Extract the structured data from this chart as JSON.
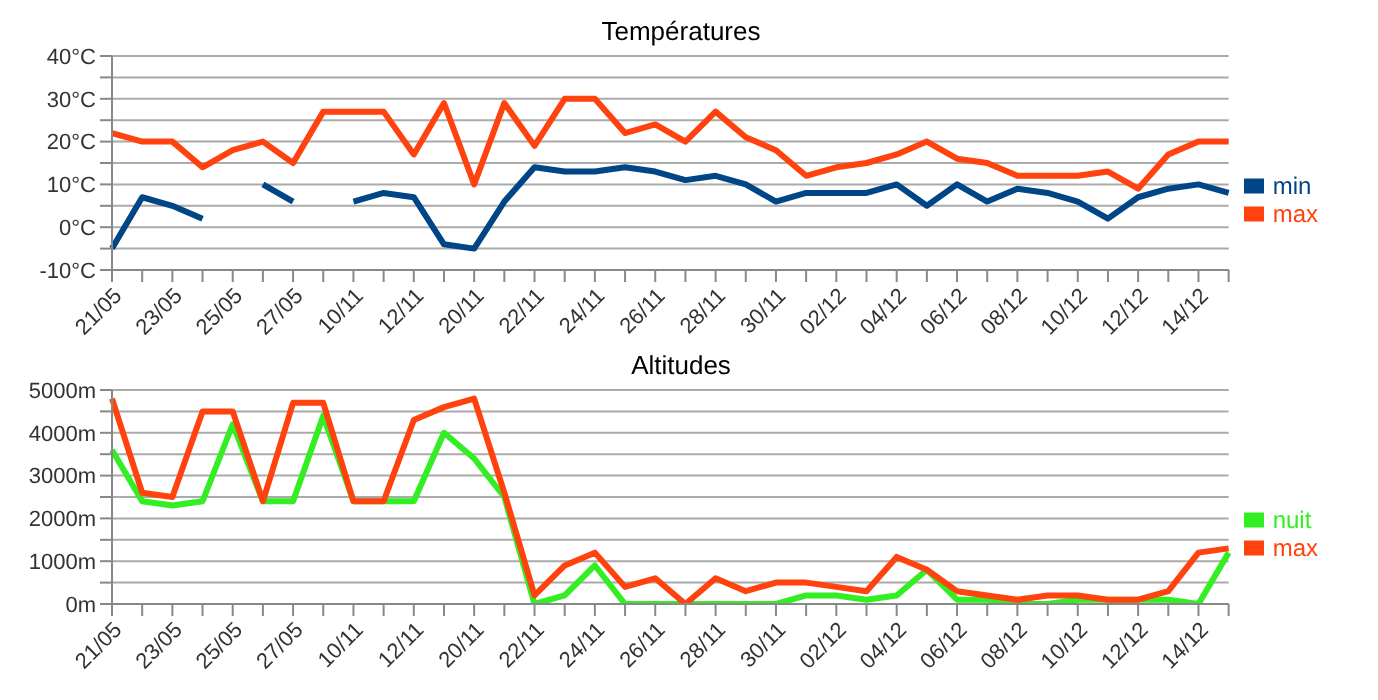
{
  "chart_data": [
    {
      "type": "line",
      "title": "Températures",
      "categories": [
        "21/05",
        null,
        "23/05",
        null,
        "25/05",
        null,
        "27/05",
        null,
        "10/11",
        null,
        "12/11",
        null,
        "20/11",
        null,
        "22/11",
        null,
        "24/11",
        null,
        "26/11",
        null,
        "28/11",
        null,
        "30/11",
        null,
        "02/12",
        null,
        "04/12",
        null,
        "06/12",
        null,
        "08/12",
        null,
        "10/12",
        null,
        "12/12",
        null,
        "14/12",
        null
      ],
      "series": [
        {
          "name": "min",
          "color": "#004586",
          "values": [
            -5,
            7,
            5,
            2,
            null,
            10,
            6,
            null,
            6,
            8,
            7,
            -4,
            -5,
            6,
            14,
            13,
            13,
            14,
            13,
            11,
            12,
            10,
            6,
            8,
            8,
            8,
            10,
            5,
            10,
            6,
            9,
            8,
            6,
            2,
            7,
            9,
            10,
            8
          ]
        },
        {
          "name": "max",
          "color": "#ff420e",
          "values": [
            22,
            20,
            20,
            14,
            18,
            20,
            15,
            27,
            27,
            27,
            17,
            29,
            10,
            29,
            19,
            30,
            30,
            22,
            24,
            20,
            27,
            21,
            18,
            12,
            14,
            15,
            17,
            20,
            16,
            15,
            12,
            12,
            12,
            13,
            9,
            17,
            20,
            20
          ]
        }
      ],
      "ylim": [
        -10,
        40
      ],
      "yticks": [
        {
          "value": -10,
          "label": "-10°C"
        },
        {
          "value": -5,
          "label": null
        },
        {
          "value": 0,
          "label": "0°C"
        },
        {
          "value": 5,
          "label": null
        },
        {
          "value": 10,
          "label": "10°C"
        },
        {
          "value": 15,
          "label": null
        },
        {
          "value": 20,
          "label": "20°C"
        },
        {
          "value": 25,
          "label": null
        },
        {
          "value": 30,
          "label": "30°C"
        },
        {
          "value": 35,
          "label": null
        },
        {
          "value": 40,
          "label": "40°C"
        }
      ],
      "grid": "y",
      "legend": "right",
      "marker": "none"
    },
    {
      "type": "line",
      "title": "Altitudes",
      "categories": [
        "21/05",
        null,
        "23/05",
        null,
        "25/05",
        null,
        "27/05",
        null,
        "10/11",
        null,
        "12/11",
        null,
        "20/11",
        null,
        "22/11",
        null,
        "24/11",
        null,
        "26/11",
        null,
        "28/11",
        null,
        "30/11",
        null,
        "02/12",
        null,
        "04/12",
        null,
        "06/12",
        null,
        "08/12",
        null,
        "10/12",
        null,
        "12/12",
        null,
        "14/12",
        null
      ],
      "series": [
        {
          "name": "nuit",
          "color": "#33ee22",
          "values": [
            3600,
            2400,
            2300,
            2400,
            4200,
            2400,
            2400,
            4400,
            2400,
            2400,
            2400,
            4000,
            3400,
            2500,
            0,
            200,
            900,
            0,
            0,
            0,
            0,
            0,
            0,
            200,
            200,
            100,
            200,
            800,
            100,
            100,
            0,
            0,
            100,
            100,
            100,
            100,
            0,
            1200
          ]
        },
        {
          "name": "max",
          "color": "#ff420e",
          "values": [
            4800,
            2600,
            2500,
            4500,
            4500,
            2400,
            4700,
            4700,
            2400,
            2400,
            4300,
            4600,
            4800,
            2600,
            200,
            900,
            1200,
            400,
            600,
            0,
            600,
            300,
            500,
            500,
            400,
            300,
            1100,
            800,
            300,
            200,
            100,
            200,
            200,
            100,
            100,
            300,
            1200,
            1300
          ]
        }
      ],
      "ylim": [
        0,
        5000
      ],
      "yticks": [
        {
          "value": 0,
          "label": "0m"
        },
        {
          "value": 500,
          "label": null
        },
        {
          "value": 1000,
          "label": "1000m"
        },
        {
          "value": 1500,
          "label": null
        },
        {
          "value": 2000,
          "label": "2000m"
        },
        {
          "value": 2500,
          "label": null
        },
        {
          "value": 3000,
          "label": "3000m"
        },
        {
          "value": 3500,
          "label": null
        },
        {
          "value": 4000,
          "label": "4000m"
        },
        {
          "value": 4500,
          "label": null
        },
        {
          "value": 5000,
          "label": "5000m"
        }
      ],
      "grid": "y",
      "legend": "right",
      "marker": "none"
    }
  ]
}
